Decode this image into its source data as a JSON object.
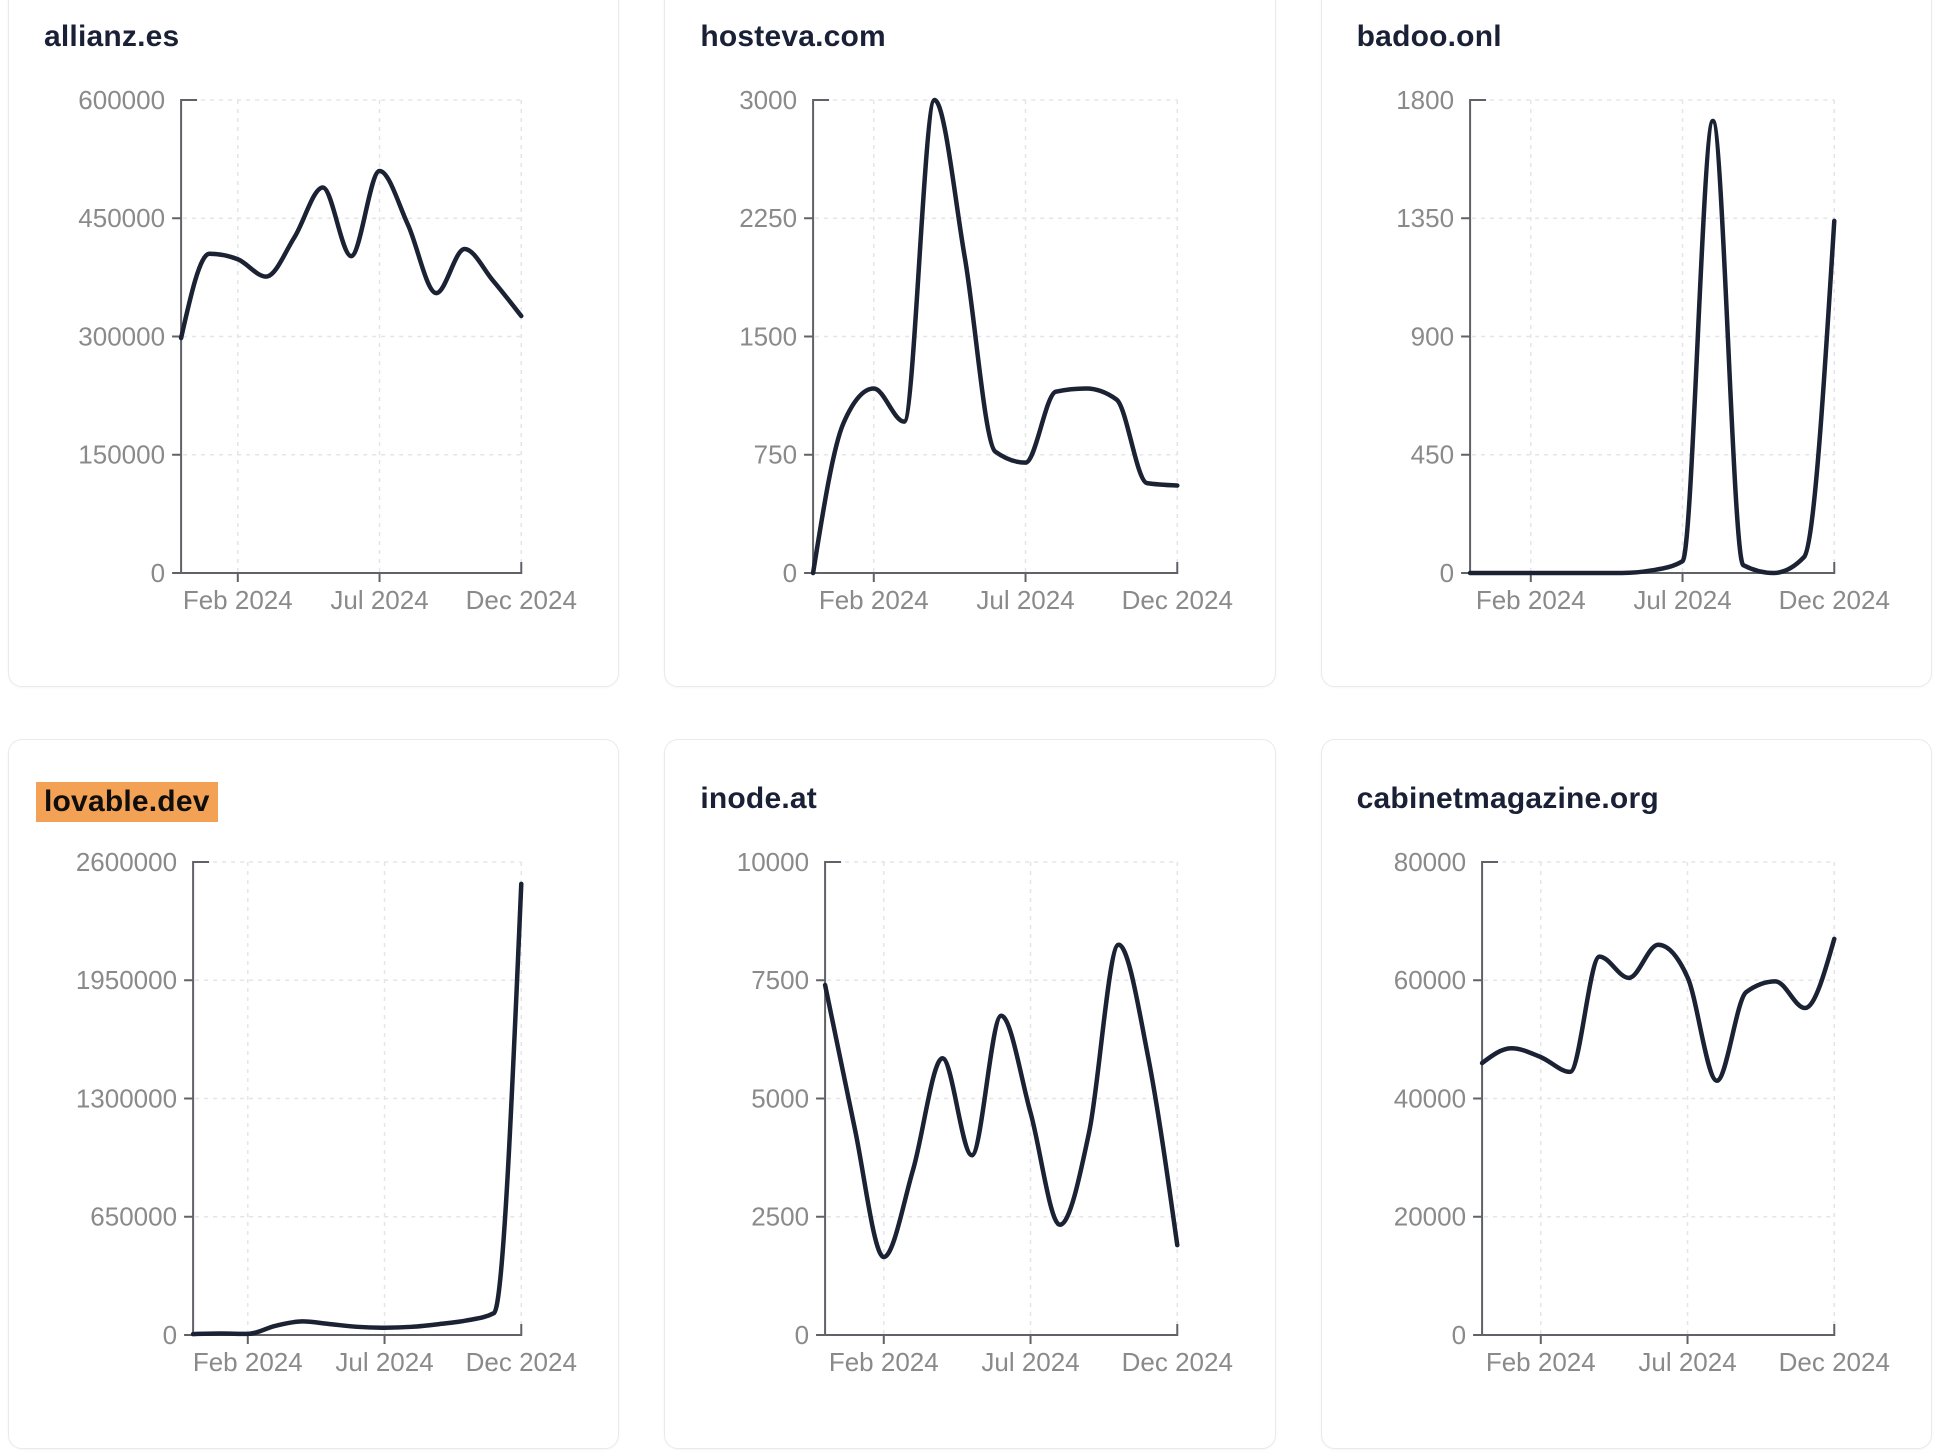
{
  "style": {
    "page_background": "#ffffff",
    "card_background": "#ffffff",
    "card_border_color": "#e9eaee",
    "title_color": "#1a2137",
    "highlight_color": "#f2a155",
    "highlight_text_color": "#0e0e0e",
    "line_color": "#1a2233",
    "axis_color": "#606268",
    "tick_label_color": "#8a8a8a",
    "gridline_color": "#e4e5e9"
  },
  "chart_data": [
    {
      "type": "line",
      "title": "allianz.es",
      "highlighted": false,
      "grid": "dashed",
      "legend": false,
      "x_months": [
        "Dec 2023",
        "Jan 2024",
        "Feb 2024",
        "Mar 2024",
        "Apr 2024",
        "May 2024",
        "Jun 2024",
        "Jul 2024",
        "Aug 2024",
        "Sep 2024",
        "Oct 2024",
        "Nov 2024",
        "Dec 2024"
      ],
      "values": [
        298000,
        405000,
        398000,
        376000,
        426000,
        489000,
        402000,
        510000,
        442000,
        355000,
        411000,
        371000,
        326000
      ],
      "yticks": [
        0,
        150000,
        300000,
        450000,
        600000
      ],
      "ylim": [
        0,
        600000
      ],
      "x_tick_labels": [
        "Feb 2024",
        "Jul 2024",
        "Dec 2024"
      ],
      "x_tick_indices": [
        2,
        7,
        12
      ]
    },
    {
      "type": "line",
      "title": "hosteva.com",
      "highlighted": false,
      "grid": "dashed",
      "legend": false,
      "x_months": [
        "Dec 2023",
        "Jan 2024",
        "Feb 2024",
        "Mar 2024",
        "Apr 2024",
        "May 2024",
        "Jun 2024",
        "Jul 2024",
        "Aug 2024",
        "Sep 2024",
        "Oct 2024",
        "Nov 2024",
        "Dec 2024"
      ],
      "values": [
        0,
        950,
        1170,
        960,
        3000,
        2000,
        770,
        700,
        1150,
        1170,
        1100,
        570,
        555
      ],
      "yticks": [
        0,
        750,
        1500,
        2250,
        3000
      ],
      "ylim": [
        0,
        3000
      ],
      "x_tick_labels": [
        "Feb 2024",
        "Jul 2024",
        "Dec 2024"
      ],
      "x_tick_indices": [
        2,
        7,
        12
      ]
    },
    {
      "type": "line",
      "title": "badoo.onl",
      "highlighted": false,
      "grid": "dashed",
      "legend": false,
      "x_months": [
        "Dec 2023",
        "Jan 2024",
        "Feb 2024",
        "Mar 2024",
        "Apr 2024",
        "May 2024",
        "Jun 2024",
        "Jul 2024",
        "Aug 2024",
        "Sep 2024",
        "Oct 2024",
        "Nov 2024",
        "Dec 2024"
      ],
      "values": [
        0,
        0,
        0,
        0,
        0,
        0,
        10,
        45,
        1720,
        30,
        0,
        60,
        1340
      ],
      "yticks": [
        0,
        450,
        900,
        1350,
        1800
      ],
      "ylim": [
        0,
        1800
      ],
      "x_tick_labels": [
        "Feb 2024",
        "Jul 2024",
        "Dec 2024"
      ],
      "x_tick_indices": [
        2,
        7,
        12
      ]
    },
    {
      "type": "line",
      "title": "lovable.dev",
      "highlighted": true,
      "grid": "dashed",
      "legend": false,
      "x_months": [
        "Dec 2023",
        "Jan 2024",
        "Feb 2024",
        "Mar 2024",
        "Apr 2024",
        "May 2024",
        "Jun 2024",
        "Jul 2024",
        "Aug 2024",
        "Sep 2024",
        "Oct 2024",
        "Nov 2024",
        "Dec 2024"
      ],
      "values": [
        5000,
        8000,
        6000,
        50000,
        75000,
        60000,
        45000,
        40000,
        45000,
        60000,
        80000,
        120000,
        2480000
      ],
      "yticks": [
        0,
        650000,
        1300000,
        1950000,
        2600000
      ],
      "ylim": [
        0,
        2600000
      ],
      "x_tick_labels": [
        "Feb 2024",
        "Jul 2024",
        "Dec 2024"
      ],
      "x_tick_indices": [
        2,
        7,
        12
      ]
    },
    {
      "type": "line",
      "title": "inode.at",
      "highlighted": false,
      "grid": "dashed",
      "legend": false,
      "x_months": [
        "Dec 2023",
        "Jan 2024",
        "Feb 2024",
        "Mar 2024",
        "Apr 2024",
        "May 2024",
        "Jun 2024",
        "Jul 2024",
        "Aug 2024",
        "Sep 2024",
        "Oct 2024",
        "Nov 2024",
        "Dec 2024"
      ],
      "values": [
        7400,
        4400,
        1650,
        3500,
        5850,
        3800,
        6750,
        4700,
        2330,
        4300,
        8250,
        5900,
        1900
      ],
      "yticks": [
        0,
        2500,
        5000,
        7500,
        10000
      ],
      "ylim": [
        0,
        10000
      ],
      "x_tick_labels": [
        "Feb 2024",
        "Jul 2024",
        "Dec 2024"
      ],
      "x_tick_indices": [
        2,
        7,
        12
      ]
    },
    {
      "type": "line",
      "title": "cabinetmagazine.org",
      "highlighted": false,
      "grid": "dashed",
      "legend": false,
      "x_months": [
        "Dec 2023",
        "Jan 2024",
        "Feb 2024",
        "Mar 2024",
        "Apr 2024",
        "May 2024",
        "Jun 2024",
        "Jul 2024",
        "Aug 2024",
        "Sep 2024",
        "Oct 2024",
        "Nov 2024",
        "Dec 2024"
      ],
      "values": [
        46000,
        48500,
        47000,
        44500,
        64000,
        60400,
        66000,
        60500,
        43000,
        58000,
        59800,
        55300,
        67000
      ],
      "yticks": [
        0,
        20000,
        40000,
        60000,
        80000
      ],
      "ylim": [
        0,
        80000
      ],
      "x_tick_labels": [
        "Feb 2024",
        "Jul 2024",
        "Dec 2024"
      ],
      "x_tick_indices": [
        2,
        7,
        12
      ]
    }
  ]
}
